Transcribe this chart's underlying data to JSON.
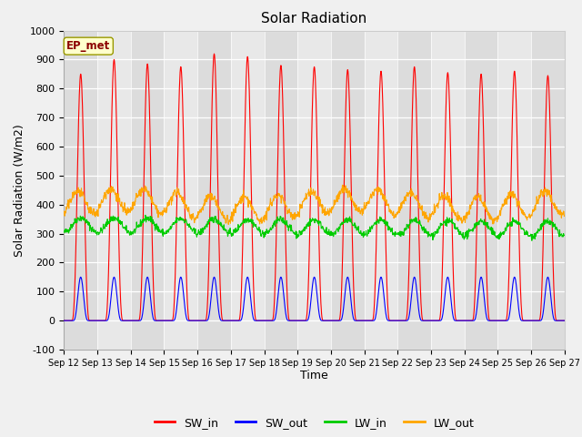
{
  "title": "Solar Radiation",
  "xlabel": "Time",
  "ylabel": "Solar Radiation (W/m2)",
  "ylim": [
    -100,
    1000
  ],
  "yticks": [
    -100,
    0,
    100,
    200,
    300,
    400,
    500,
    600,
    700,
    800,
    900,
    1000
  ],
  "x_tick_labels": [
    "Sep 12",
    "Sep 13",
    "Sep 14",
    "Sep 15",
    "Sep 16",
    "Sep 17",
    "Sep 18",
    "Sep 19",
    "Sep 20",
    "Sep 21",
    "Sep 22",
    "Sep 23",
    "Sep 24",
    "Sep 25",
    "Sep 26",
    "Sep 27"
  ],
  "series_colors": {
    "SW_in": "#ff0000",
    "SW_out": "#0000ff",
    "LW_in": "#00cc00",
    "LW_out": "#ffa500"
  },
  "plot_bg_color": "#e8e8e8",
  "stripe_color_a": "#dcdcdc",
  "stripe_color_b": "#e8e8e8",
  "annotation_text": "EP_met",
  "annotation_color": "#8B0000",
  "annotation_bg": "#ffffcc",
  "n_days": 15,
  "hours_per_day": 24,
  "sw_in_peaks": [
    850,
    900,
    885,
    875,
    920,
    910,
    880,
    875,
    865,
    860,
    875,
    855,
    850,
    860,
    845
  ],
  "sw_out_peak": 150,
  "lw_in_base": 330,
  "lw_out_base": 400
}
